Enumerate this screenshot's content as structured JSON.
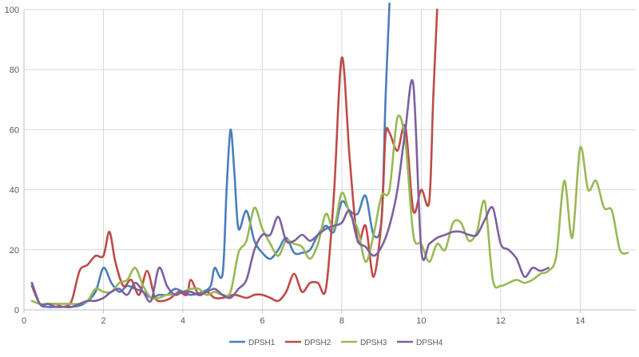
{
  "chart_data": {
    "type": "line",
    "title": "",
    "xlabel": "",
    "ylabel": "",
    "xlim": [
      0,
      15.4
    ],
    "ylim": [
      0,
      100
    ],
    "x_ticks": [
      0,
      2,
      4,
      6,
      8,
      10,
      12,
      14
    ],
    "y_ticks": [
      0,
      20,
      40,
      60,
      80,
      100
    ],
    "grid": "vertical and horizontal major gridlines",
    "legend_position": "bottom",
    "series": [
      {
        "name": "DPSH1",
        "color": "#4a7ebb",
        "points": [
          [
            0.2,
            9
          ],
          [
            0.4,
            2
          ],
          [
            0.6,
            1
          ],
          [
            0.8,
            1
          ],
          [
            1.0,
            1
          ],
          [
            1.2,
            1
          ],
          [
            1.5,
            2
          ],
          [
            1.8,
            6
          ],
          [
            2.0,
            14
          ],
          [
            2.2,
            9
          ],
          [
            2.4,
            6
          ],
          [
            2.6,
            8
          ],
          [
            2.8,
            7
          ],
          [
            3.0,
            6
          ],
          [
            3.2,
            4
          ],
          [
            3.4,
            5
          ],
          [
            3.6,
            5
          ],
          [
            3.8,
            7
          ],
          [
            4.0,
            6
          ],
          [
            4.2,
            5
          ],
          [
            4.5,
            6
          ],
          [
            4.7,
            8
          ],
          [
            4.8,
            14
          ],
          [
            5.0,
            12
          ],
          [
            5.1,
            40
          ],
          [
            5.2,
            60
          ],
          [
            5.3,
            45
          ],
          [
            5.4,
            27
          ],
          [
            5.6,
            33
          ],
          [
            5.8,
            23
          ],
          [
            6.0,
            19
          ],
          [
            6.2,
            17
          ],
          [
            6.4,
            20
          ],
          [
            6.6,
            24
          ],
          [
            6.8,
            19
          ],
          [
            7.0,
            19
          ],
          [
            7.2,
            20
          ],
          [
            7.4,
            25
          ],
          [
            7.6,
            28
          ],
          [
            7.8,
            26
          ],
          [
            8.0,
            36
          ],
          [
            8.2,
            33
          ],
          [
            8.4,
            32
          ],
          [
            8.6,
            38
          ],
          [
            8.8,
            25
          ],
          [
            9.0,
            30
          ],
          [
            9.1,
            70
          ],
          [
            9.2,
            102
          ]
        ]
      },
      {
        "name": "DPSH2",
        "color": "#be4b48",
        "points": [
          [
            0.2,
            8
          ],
          [
            0.4,
            2
          ],
          [
            0.6,
            2
          ],
          [
            0.8,
            2
          ],
          [
            1.0,
            1
          ],
          [
            1.2,
            3
          ],
          [
            1.4,
            13
          ],
          [
            1.6,
            15
          ],
          [
            1.8,
            18
          ],
          [
            2.0,
            18
          ],
          [
            2.15,
            26
          ],
          [
            2.3,
            16
          ],
          [
            2.5,
            8
          ],
          [
            2.7,
            10
          ],
          [
            2.9,
            5
          ],
          [
            3.1,
            13
          ],
          [
            3.3,
            4
          ],
          [
            3.5,
            3
          ],
          [
            3.7,
            4
          ],
          [
            3.9,
            6
          ],
          [
            4.1,
            5
          ],
          [
            4.2,
            10
          ],
          [
            4.4,
            5
          ],
          [
            4.6,
            6
          ],
          [
            4.8,
            4
          ],
          [
            5.0,
            4
          ],
          [
            5.3,
            5
          ],
          [
            5.6,
            4
          ],
          [
            5.8,
            5
          ],
          [
            6.0,
            5
          ],
          [
            6.2,
            4
          ],
          [
            6.4,
            3
          ],
          [
            6.6,
            6
          ],
          [
            6.8,
            12
          ],
          [
            7.0,
            6
          ],
          [
            7.2,
            9
          ],
          [
            7.4,
            9
          ],
          [
            7.6,
            7
          ],
          [
            7.8,
            38
          ],
          [
            8.0,
            84
          ],
          [
            8.2,
            50
          ],
          [
            8.4,
            23
          ],
          [
            8.6,
            28
          ],
          [
            8.8,
            11
          ],
          [
            9.0,
            30
          ],
          [
            9.1,
            58
          ],
          [
            9.2,
            59
          ],
          [
            9.4,
            53
          ],
          [
            9.6,
            61
          ],
          [
            9.8,
            33
          ],
          [
            10.0,
            40
          ],
          [
            10.2,
            36
          ],
          [
            10.3,
            70
          ],
          [
            10.4,
            100
          ]
        ]
      },
      {
        "name": "DPSH3",
        "color": "#98b954",
        "points": [
          [
            0.2,
            3
          ],
          [
            0.4,
            2
          ],
          [
            0.6,
            2
          ],
          [
            0.8,
            2
          ],
          [
            1.0,
            2
          ],
          [
            1.2,
            2
          ],
          [
            1.4,
            2
          ],
          [
            1.6,
            3
          ],
          [
            1.8,
            7
          ],
          [
            2.0,
            6
          ],
          [
            2.2,
            6
          ],
          [
            2.4,
            9
          ],
          [
            2.6,
            10
          ],
          [
            2.8,
            14
          ],
          [
            3.0,
            8
          ],
          [
            3.2,
            4
          ],
          [
            3.4,
            4
          ],
          [
            3.6,
            5
          ],
          [
            3.8,
            5
          ],
          [
            4.0,
            6
          ],
          [
            4.2,
            7
          ],
          [
            4.4,
            7
          ],
          [
            4.6,
            5
          ],
          [
            4.8,
            6
          ],
          [
            5.0,
            5
          ],
          [
            5.2,
            6
          ],
          [
            5.4,
            19
          ],
          [
            5.6,
            23
          ],
          [
            5.8,
            34
          ],
          [
            6.0,
            27
          ],
          [
            6.2,
            22
          ],
          [
            6.4,
            18
          ],
          [
            6.6,
            23
          ],
          [
            6.8,
            22
          ],
          [
            7.0,
            21
          ],
          [
            7.2,
            17
          ],
          [
            7.4,
            22
          ],
          [
            7.6,
            32
          ],
          [
            7.8,
            27
          ],
          [
            8.0,
            39
          ],
          [
            8.2,
            32
          ],
          [
            8.4,
            27
          ],
          [
            8.6,
            16
          ],
          [
            8.8,
            25
          ],
          [
            9.0,
            38
          ],
          [
            9.2,
            40
          ],
          [
            9.4,
            64
          ],
          [
            9.6,
            56
          ],
          [
            9.8,
            25
          ],
          [
            10.0,
            22
          ],
          [
            10.2,
            16
          ],
          [
            10.4,
            22
          ],
          [
            10.6,
            20
          ],
          [
            10.8,
            29
          ],
          [
            11.0,
            29
          ],
          [
            11.2,
            23
          ],
          [
            11.4,
            26
          ],
          [
            11.6,
            36
          ],
          [
            11.8,
            10
          ],
          [
            12.0,
            8
          ],
          [
            12.2,
            9
          ],
          [
            12.4,
            10
          ],
          [
            12.6,
            9
          ],
          [
            12.8,
            10
          ],
          [
            13.0,
            12
          ],
          [
            13.2,
            13
          ],
          [
            13.4,
            18
          ],
          [
            13.6,
            43
          ],
          [
            13.8,
            24
          ],
          [
            14.0,
            54
          ],
          [
            14.2,
            40
          ],
          [
            14.4,
            43
          ],
          [
            14.6,
            34
          ],
          [
            14.8,
            33
          ],
          [
            15.0,
            20
          ],
          [
            15.2,
            19
          ]
        ]
      },
      {
        "name": "DPSH4",
        "color": "#7d60a0",
        "points": [
          [
            0.2,
            9
          ],
          [
            0.4,
            2
          ],
          [
            0.6,
            2
          ],
          [
            0.8,
            1
          ],
          [
            1.0,
            1
          ],
          [
            1.2,
            1
          ],
          [
            1.4,
            2
          ],
          [
            1.6,
            3
          ],
          [
            1.8,
            3
          ],
          [
            2.0,
            4
          ],
          [
            2.2,
            6
          ],
          [
            2.4,
            7
          ],
          [
            2.6,
            5
          ],
          [
            2.8,
            9
          ],
          [
            3.0,
            6
          ],
          [
            3.2,
            3
          ],
          [
            3.4,
            14
          ],
          [
            3.6,
            8
          ],
          [
            3.8,
            5
          ],
          [
            4.0,
            6
          ],
          [
            4.2,
            6
          ],
          [
            4.4,
            5
          ],
          [
            4.6,
            6
          ],
          [
            4.8,
            7
          ],
          [
            5.0,
            5
          ],
          [
            5.2,
            4
          ],
          [
            5.4,
            7
          ],
          [
            5.6,
            10
          ],
          [
            5.8,
            20
          ],
          [
            6.0,
            25
          ],
          [
            6.2,
            25
          ],
          [
            6.4,
            31
          ],
          [
            6.6,
            23
          ],
          [
            6.8,
            23
          ],
          [
            7.0,
            25
          ],
          [
            7.2,
            23
          ],
          [
            7.4,
            25
          ],
          [
            7.6,
            27
          ],
          [
            7.8,
            28
          ],
          [
            8.0,
            29
          ],
          [
            8.2,
            33
          ],
          [
            8.4,
            23
          ],
          [
            8.6,
            21
          ],
          [
            8.8,
            18
          ],
          [
            9.0,
            21
          ],
          [
            9.2,
            28
          ],
          [
            9.4,
            40
          ],
          [
            9.6,
            60
          ],
          [
            9.8,
            75
          ],
          [
            10.0,
            20
          ],
          [
            10.2,
            22
          ],
          [
            10.4,
            24
          ],
          [
            10.6,
            25
          ],
          [
            10.8,
            26
          ],
          [
            11.0,
            26
          ],
          [
            11.2,
            25
          ],
          [
            11.4,
            25
          ],
          [
            11.6,
            30
          ],
          [
            11.8,
            34
          ],
          [
            12.0,
            22
          ],
          [
            12.2,
            20
          ],
          [
            12.4,
            17
          ],
          [
            12.6,
            11
          ],
          [
            12.8,
            14
          ],
          [
            13.0,
            13
          ],
          [
            13.2,
            14
          ]
        ]
      }
    ]
  }
}
